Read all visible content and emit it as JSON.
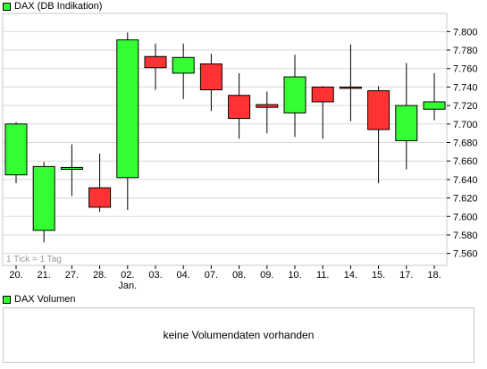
{
  "price_panel": {
    "legend": "DAX (DB Indikation)",
    "tick_note": "1 Tick = 1 Tag"
  },
  "volume_panel": {
    "legend": "DAX Volumen",
    "message": "keine Volumendaten vorhanden"
  },
  "colors": {
    "up": "#33ff33",
    "down": "#ff3333",
    "grid": "#d9d9d9",
    "border": "#c8c8c8"
  },
  "chart_data": {
    "type": "candlestick",
    "title": "DAX (DB Indikation)",
    "ylim": [
      7550,
      7810
    ],
    "y_ticks": [
      7560,
      7580,
      7600,
      7620,
      7640,
      7660,
      7680,
      7700,
      7720,
      7740,
      7760,
      7780,
      7800
    ],
    "y_tick_labels": [
      "7.560",
      "7.580",
      "7.600",
      "7.620",
      "7.640",
      "7.660",
      "7.680",
      "7.700",
      "7.720",
      "7.740",
      "7.760",
      "7.780",
      "7.800"
    ],
    "categories": [
      "20.",
      "21.",
      "27.",
      "28.",
      "02.",
      "03.",
      "04.",
      "07.",
      "08.",
      "09.",
      "10.",
      "11.",
      "14.",
      "15.",
      "17.",
      "18."
    ],
    "category_sublabels": [
      "",
      "",
      "",
      "",
      "Jan.",
      "",
      "",
      "",
      "",
      "",
      "",
      "",
      "",
      "",
      "",
      ""
    ],
    "candles": [
      {
        "date": "20.",
        "open": 7645,
        "high": 7702,
        "low": 7636,
        "close": 7700
      },
      {
        "date": "21.",
        "open": 7585,
        "high": 7659,
        "low": 7572,
        "close": 7654
      },
      {
        "date": "27.",
        "open": 7651,
        "high": 7678,
        "low": 7622,
        "close": 7653
      },
      {
        "date": "28.",
        "open": 7631,
        "high": 7668,
        "low": 7605,
        "close": 7610
      },
      {
        "date": "02.",
        "open": 7642,
        "high": 7799,
        "low": 7607,
        "close": 7791
      },
      {
        "date": "03.",
        "open": 7773,
        "high": 7787,
        "low": 7737,
        "close": 7761
      },
      {
        "date": "04.",
        "open": 7755,
        "high": 7787,
        "low": 7727,
        "close": 7772
      },
      {
        "date": "07.",
        "open": 7765,
        "high": 7776,
        "low": 7714,
        "close": 7737
      },
      {
        "date": "08.",
        "open": 7731,
        "high": 7755,
        "low": 7684,
        "close": 7706
      },
      {
        "date": "09.",
        "open": 7721,
        "high": 7735,
        "low": 7690,
        "close": 7718
      },
      {
        "date": "10.",
        "open": 7712,
        "high": 7775,
        "low": 7686,
        "close": 7751
      },
      {
        "date": "11.",
        "open": 7740,
        "high": 7741,
        "low": 7684,
        "close": 7724
      },
      {
        "date": "14.",
        "open": 7740,
        "high": 7786,
        "low": 7703,
        "close": 7739
      },
      {
        "date": "15.",
        "open": 7736,
        "high": 7741,
        "low": 7636,
        "close": 7694
      },
      {
        "date": "17.",
        "open": 7682,
        "high": 7766,
        "low": 7651,
        "close": 7720
      },
      {
        "date": "18.",
        "open": 7716,
        "high": 7755,
        "low": 7704,
        "close": 7724
      }
    ],
    "grid": true
  }
}
